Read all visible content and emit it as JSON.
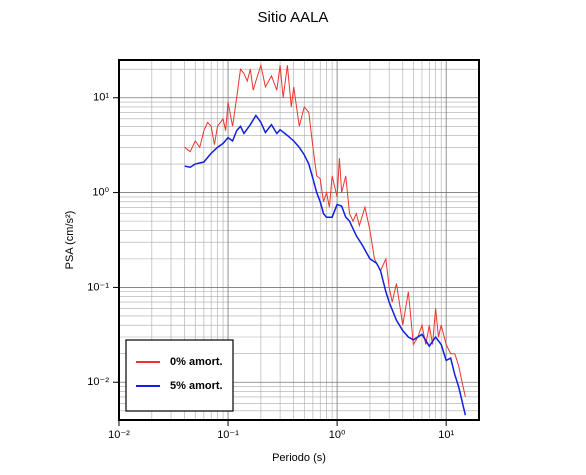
{
  "chart_data": {
    "type": "line",
    "title": "Sitio AALA",
    "xlabel": "Periodo (s)",
    "ylabel": "PSA (cm/s²)",
    "xscale": "log",
    "yscale": "log",
    "grid": true,
    "legend": "lower left",
    "xlim": [
      0.01,
      20
    ],
    "ylim": [
      0.004,
      25
    ],
    "xticks": [
      {
        "value": 0.01,
        "label": "10⁻²"
      },
      {
        "value": 0.1,
        "label": "10⁻¹"
      },
      {
        "value": 1,
        "label": "10⁰"
      },
      {
        "value": 10,
        "label": "10¹"
      }
    ],
    "yticks": [
      {
        "value": 0.01,
        "label": "10⁻²"
      },
      {
        "value": 0.1,
        "label": "10⁻¹"
      },
      {
        "value": 1,
        "label": "10⁰"
      },
      {
        "value": 10,
        "label": "10¹"
      }
    ],
    "xminorticks": [
      0.02,
      0.03,
      0.04,
      0.05,
      0.06,
      0.07,
      0.08,
      0.09,
      0.2,
      0.3,
      0.4,
      0.5,
      0.6,
      0.7,
      0.8,
      0.9,
      2,
      3,
      4,
      5,
      6,
      7,
      8,
      9,
      20
    ],
    "yminorticks": [
      0.004,
      0.005,
      0.006,
      0.007,
      0.008,
      0.009,
      0.02,
      0.03,
      0.04,
      0.05,
      0.06,
      0.07,
      0.08,
      0.09,
      0.2,
      0.3,
      0.4,
      0.5,
      0.6,
      0.7,
      0.8,
      0.9,
      2,
      3,
      4,
      5,
      6,
      7,
      8,
      9,
      20
    ],
    "series": [
      {
        "name": "0% amort.",
        "color": "#e8362f",
        "x": [
          0.04,
          0.045,
          0.05,
          0.055,
          0.06,
          0.065,
          0.07,
          0.075,
          0.08,
          0.09,
          0.095,
          0.1,
          0.11,
          0.12,
          0.13,
          0.14,
          0.15,
          0.16,
          0.17,
          0.18,
          0.2,
          0.22,
          0.25,
          0.28,
          0.3,
          0.32,
          0.35,
          0.38,
          0.4,
          0.45,
          0.5,
          0.55,
          0.6,
          0.65,
          0.7,
          0.75,
          0.8,
          0.85,
          0.9,
          1.0,
          1.05,
          1.1,
          1.2,
          1.3,
          1.4,
          1.5,
          1.6,
          1.8,
          2.0,
          2.2,
          2.5,
          2.8,
          3.0,
          3.2,
          3.5,
          4.0,
          4.5,
          5,
          5.5,
          6,
          6.5,
          7,
          7.5,
          8,
          8.5,
          9,
          10,
          11,
          12,
          13,
          14,
          15
        ],
        "values": [
          3.0,
          2.7,
          3.5,
          3.0,
          4.5,
          5.5,
          5.0,
          3.2,
          5.0,
          6.0,
          4.5,
          9.0,
          5.0,
          10,
          20,
          18,
          15,
          20,
          12,
          15,
          22,
          13,
          17,
          12,
          22,
          10,
          22,
          8,
          13,
          5,
          8,
          7,
          3,
          1.5,
          1.4,
          0.8,
          1.0,
          0.7,
          1.5,
          0.9,
          2.3,
          1.0,
          1.5,
          0.6,
          0.5,
          0.6,
          0.45,
          0.7,
          0.4,
          0.2,
          0.15,
          0.2,
          0.1,
          0.07,
          0.11,
          0.04,
          0.09,
          0.025,
          0.03,
          0.04,
          0.025,
          0.04,
          0.025,
          0.06,
          0.03,
          0.04,
          0.025,
          0.02,
          0.02,
          0.015,
          0.01,
          0.007
        ]
      },
      {
        "name": "5% amort.",
        "color": "#1020e0",
        "x": [
          0.04,
          0.045,
          0.05,
          0.06,
          0.07,
          0.08,
          0.09,
          0.1,
          0.11,
          0.12,
          0.13,
          0.14,
          0.16,
          0.18,
          0.2,
          0.22,
          0.25,
          0.28,
          0.3,
          0.35,
          0.4,
          0.45,
          0.5,
          0.55,
          0.6,
          0.65,
          0.7,
          0.75,
          0.8,
          0.9,
          1.0,
          1.1,
          1.2,
          1.3,
          1.5,
          1.7,
          2.0,
          2.3,
          2.5,
          2.8,
          3.0,
          3.5,
          4.0,
          4.5,
          5,
          6,
          7,
          8,
          9,
          10,
          11,
          12,
          13,
          15
        ],
        "values": [
          1.9,
          1.85,
          2.0,
          2.1,
          2.6,
          3.0,
          3.3,
          3.8,
          3.5,
          4.5,
          5.0,
          4.2,
          5.2,
          6.5,
          5.5,
          4.3,
          5.2,
          4.2,
          4.6,
          4.0,
          3.5,
          3.0,
          2.5,
          2.0,
          1.4,
          1.0,
          0.8,
          0.6,
          0.55,
          0.55,
          0.75,
          0.72,
          0.55,
          0.5,
          0.35,
          0.28,
          0.2,
          0.18,
          0.15,
          0.09,
          0.07,
          0.045,
          0.035,
          0.03,
          0.028,
          0.032,
          0.024,
          0.03,
          0.025,
          0.017,
          0.018,
          0.012,
          0.009,
          0.0045
        ]
      }
    ]
  }
}
